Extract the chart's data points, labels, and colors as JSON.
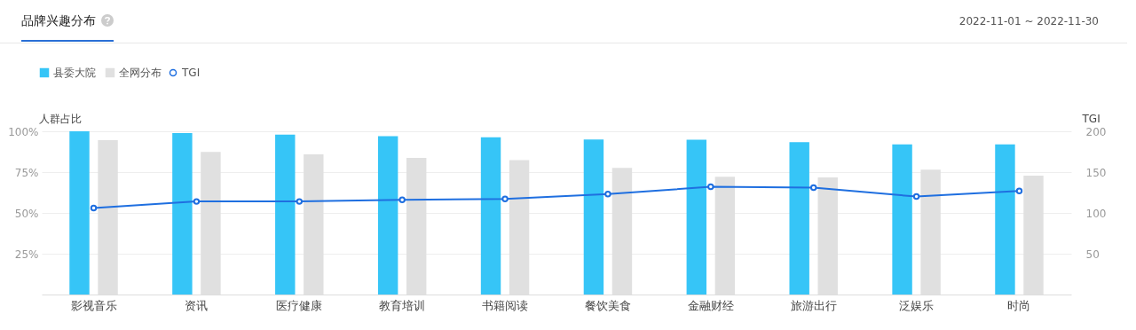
{
  "chart_data": {
    "type": "bar",
    "title": "品牌兴趣分布",
    "subtitle": "2022-11-01 ~ 2022-11-30",
    "ylabel": "人群占比",
    "y2label": "TGI",
    "categories": [
      "影视音乐",
      "资讯",
      "医疗健康",
      "教育培训",
      "书籍阅读",
      "餐饮美食",
      "金融财经",
      "旅游出行",
      "泛娱乐",
      "时尚"
    ],
    "series": [
      {
        "name": "县委大院",
        "color": "#36c5f7",
        "values": [
          100,
          98.9,
          98,
          97,
          96.3,
          95,
          94.8,
          93.3,
          92,
          92
        ]
      },
      {
        "name": "全网分布",
        "color": "#e0e0e0",
        "values": [
          94.6,
          87.4,
          85.9,
          83.7,
          82.4,
          77.6,
          72.2,
          71.7,
          76.5,
          72.8
        ]
      },
      {
        "name": "TGI",
        "type": "line",
        "axis": "y2",
        "color": "#1f6fe0",
        "values": [
          106,
          114,
          114,
          116,
          117,
          123,
          132,
          131,
          120,
          127
        ]
      }
    ],
    "ylim": [
      0,
      100
    ],
    "yticks": [
      {
        "value": 25,
        "label": "25%"
      },
      {
        "value": 50,
        "label": "50%"
      },
      {
        "value": 75,
        "label": "75%"
      },
      {
        "value": 100,
        "label": "100%"
      }
    ],
    "y2lim": [
      0,
      200
    ],
    "y2ticks": [
      50,
      100,
      150,
      200
    ],
    "grid": "y",
    "legend": "top left",
    "marker": "circle",
    "line_style": "solid"
  }
}
